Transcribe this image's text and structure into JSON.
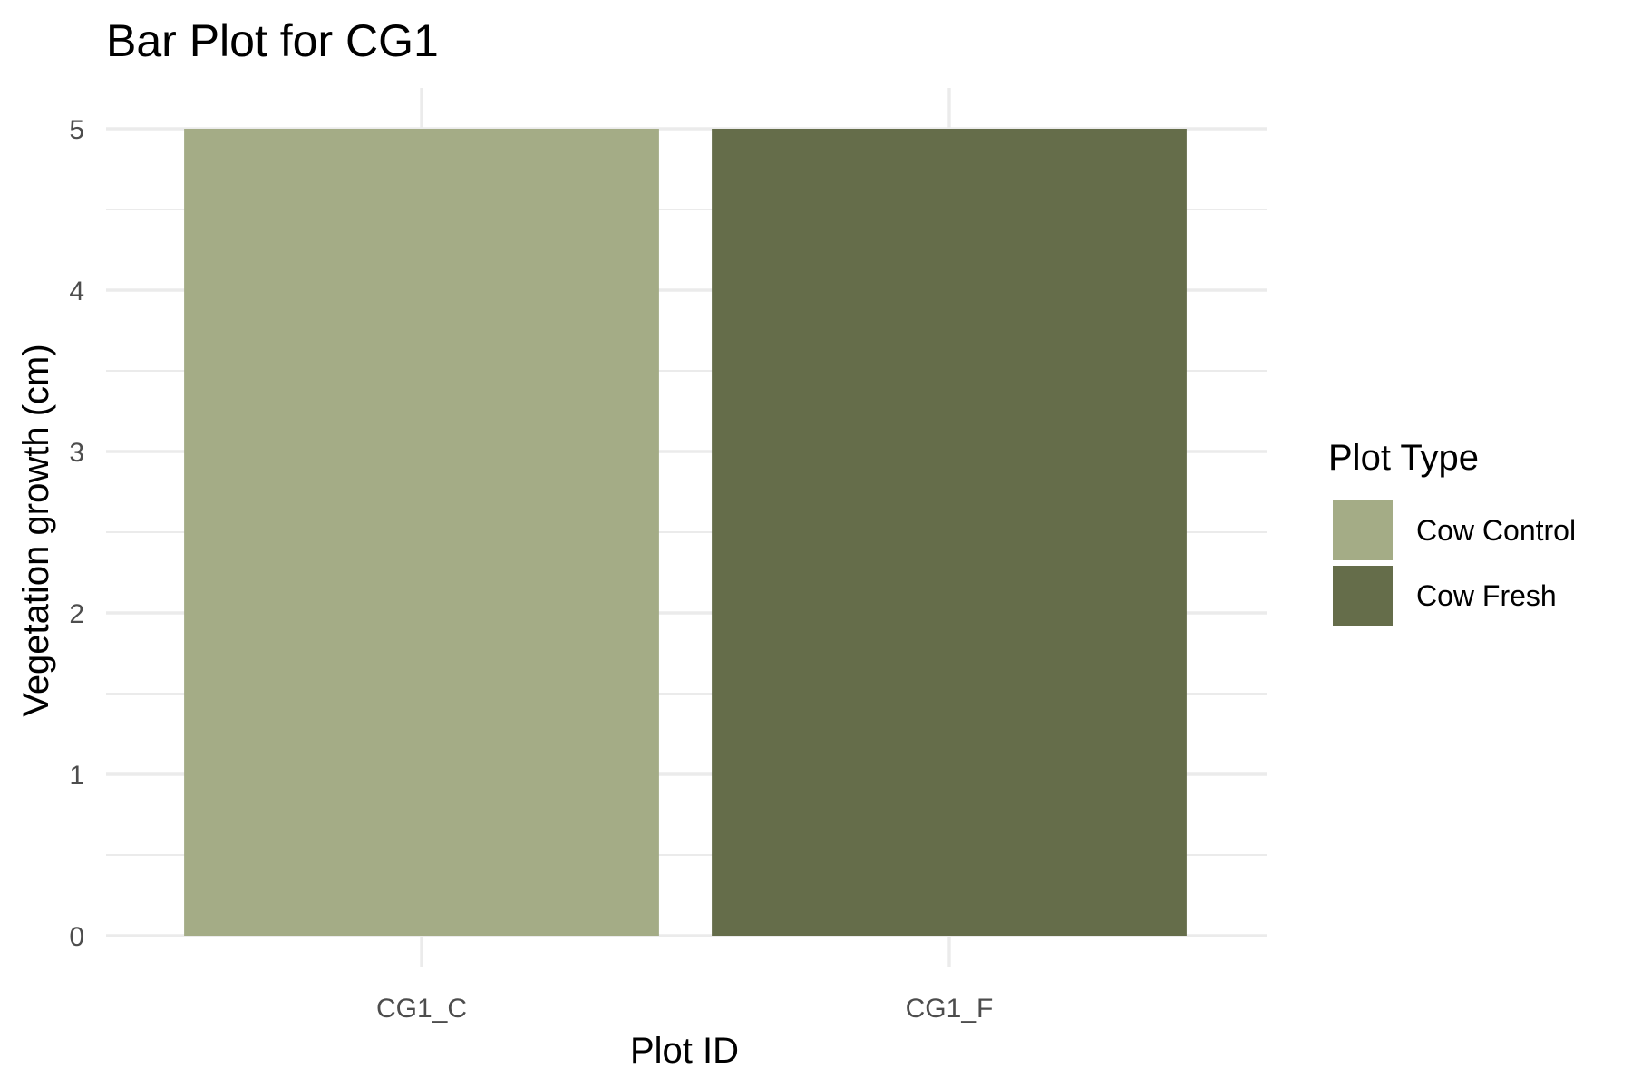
{
  "chart_data": {
    "type": "bar",
    "title": "Bar Plot for CG1",
    "xlabel": "Plot ID",
    "ylabel": "Vegetation growth (cm)",
    "categories": [
      "CG1_C",
      "CG1_F"
    ],
    "values": [
      5,
      5
    ],
    "bar_groups": [
      "Cow Control",
      "Cow Fresh"
    ],
    "ylim": [
      0,
      5
    ],
    "yticks": [
      0,
      1,
      2,
      3,
      4,
      5
    ],
    "grid": true,
    "legend": {
      "title": "Plot Type",
      "position": "right",
      "entries": [
        {
          "label": "Cow Control",
          "color": "#a4ac86"
        },
        {
          "label": "Cow Fresh",
          "color": "#656d4a"
        }
      ]
    }
  }
}
